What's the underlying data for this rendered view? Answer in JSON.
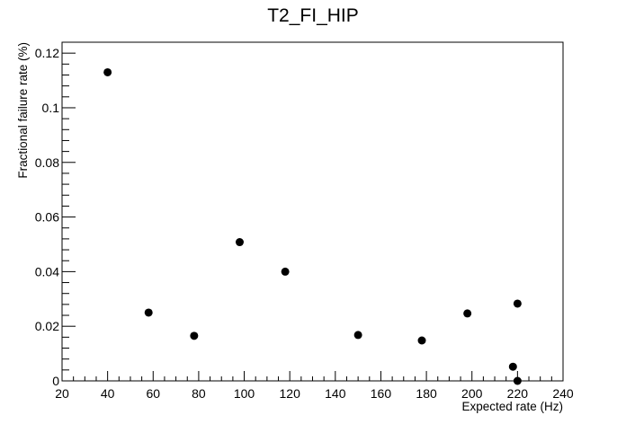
{
  "chart_data": {
    "type": "scatter",
    "title": "T2_FI_HIP",
    "xlabel": "Expected rate (Hz)",
    "ylabel": "Fractional failure rate (%)",
    "xlim": [
      20,
      240
    ],
    "ylim": [
      0,
      0.124
    ],
    "x_ticks": [
      "20",
      "40",
      "60",
      "80",
      "100",
      "120",
      "140",
      "160",
      "180",
      "200",
      "220",
      "240"
    ],
    "y_ticks": [
      "0",
      "0.02",
      "0.04",
      "0.06",
      "0.08",
      "0.1",
      "0.12"
    ],
    "grid": false,
    "legend": "none",
    "marker_color": "#000000",
    "points": [
      {
        "x": 40,
        "y": 0.113
      },
      {
        "x": 58,
        "y": 0.025
      },
      {
        "x": 78,
        "y": 0.0165
      },
      {
        "x": 98,
        "y": 0.0508
      },
      {
        "x": 118,
        "y": 0.04
      },
      {
        "x": 150,
        "y": 0.0168
      },
      {
        "x": 178,
        "y": 0.0148
      },
      {
        "x": 198,
        "y": 0.0247
      },
      {
        "x": 218,
        "y": 0.0052
      },
      {
        "x": 220,
        "y": 0.0283
      },
      {
        "x": 220,
        "y": 0.0
      }
    ]
  }
}
